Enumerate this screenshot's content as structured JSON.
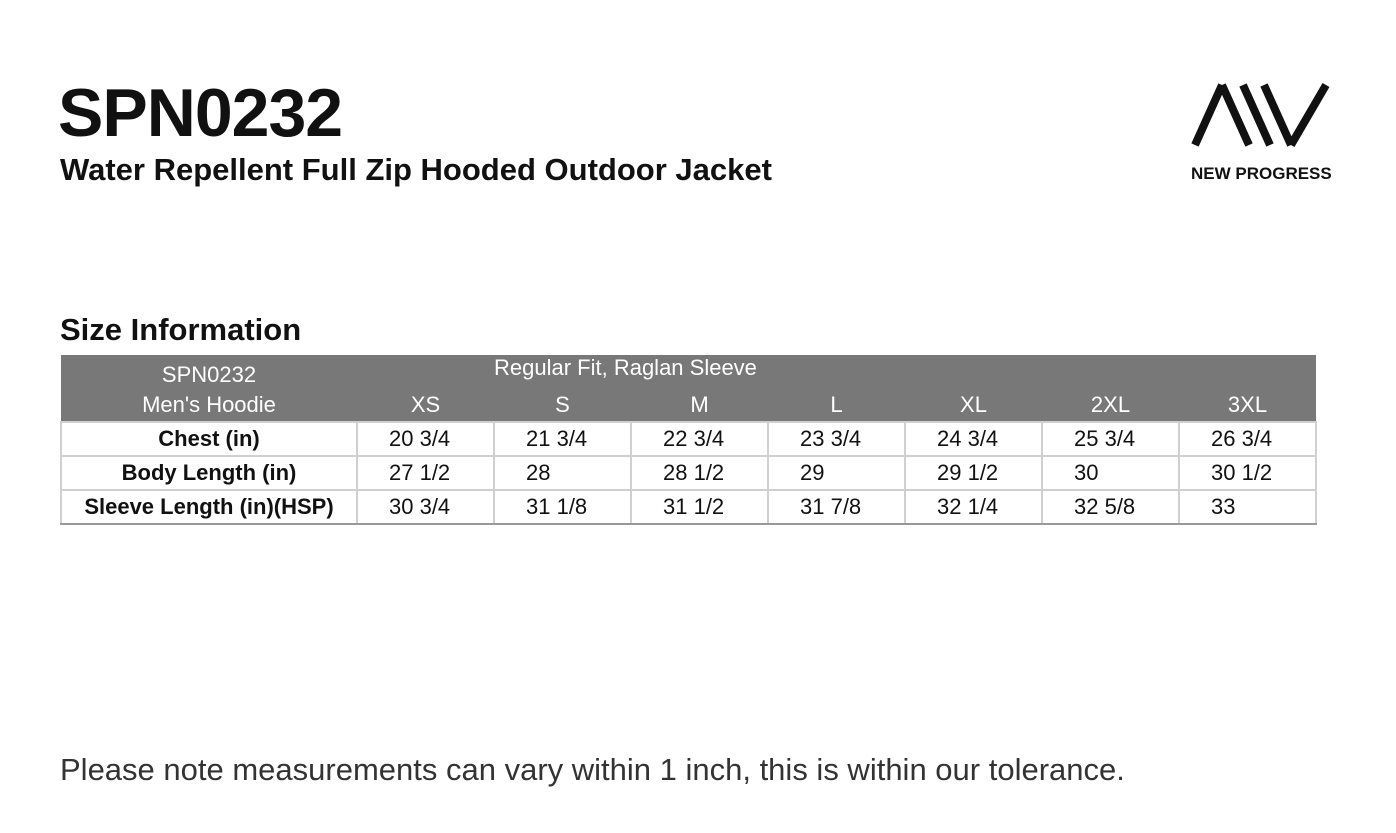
{
  "header": {
    "code": "SPN0232",
    "subtitle": "Water Repellent Full Zip Hooded Outdoor Jacket"
  },
  "logo": {
    "text": "NEW PROGRESS"
  },
  "section_title": "Size Information",
  "table": {
    "header_rows": [
      [
        "SPN0232",
        "Regular Fit, Raglan Sleeve"
      ],
      [
        "Men's Hoodie",
        "XS",
        "S",
        "M",
        "L",
        "XL",
        "2XL",
        "3XL"
      ]
    ],
    "rows": [
      [
        "Chest (in)",
        "20 3/4",
        "21 3/4",
        "22 3/4",
        "23 3/4",
        "24 3/4",
        "25 3/4",
        "26 3/4"
      ],
      [
        "Body Length (in)",
        "27 1/2",
        "28",
        "28 1/2",
        "29",
        "29 1/2",
        "30",
        "30 1/2"
      ],
      [
        "Sleeve Length (in)(HSP)",
        "30 3/4",
        "31 1/8",
        "31 1/2",
        "31 7/8",
        "32 1/4",
        "32 5/8",
        "33"
      ]
    ]
  },
  "note": "Please note measurements can vary within 1 inch, this is within our tolerance."
}
